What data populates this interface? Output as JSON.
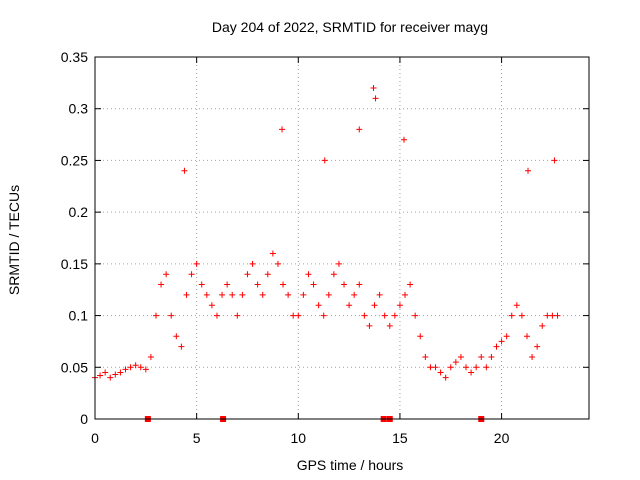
{
  "chart_data": {
    "type": "scatter",
    "title": "Day 204 of 2022, SRMTID for receiver mayg",
    "xlabel": "GPS time / hours",
    "ylabel": "SRMTID / TECUs",
    "xlim": [
      0,
      24.3
    ],
    "ylim": [
      0,
      0.35
    ],
    "xticks": [
      0,
      5,
      10,
      15,
      20
    ],
    "xtick_labels": [
      "0",
      "5",
      "10",
      "15",
      "20"
    ],
    "yticks": [
      0,
      0.05,
      0.1,
      0.15,
      0.2,
      0.25,
      0.3,
      0.35
    ],
    "ytick_labels": [
      "0",
      "0.05",
      "0.1",
      "0.15",
      "0.2",
      "0.25",
      "0.3",
      "0.35"
    ],
    "grid": true,
    "marker": "+",
    "color": "#ff0000",
    "series": [
      {
        "name": "SRMTID",
        "x": [
          0.0,
          0.25,
          0.5,
          0.75,
          1.0,
          1.25,
          1.5,
          1.75,
          2.0,
          2.25,
          2.5,
          2.75,
          3.0,
          3.25,
          3.5,
          3.75,
          4.0,
          4.25,
          4.5,
          4.75,
          5.0,
          5.25,
          5.5,
          5.75,
          6.0,
          6.25,
          6.5,
          6.75,
          7.0,
          7.25,
          7.5,
          7.75,
          8.0,
          8.25,
          8.5,
          8.75,
          9.0,
          9.25,
          9.5,
          9.75,
          10.0,
          10.25,
          10.5,
          10.75,
          11.0,
          11.25,
          11.5,
          11.75,
          12.0,
          12.25,
          12.5,
          12.75,
          13.0,
          13.25,
          13.5,
          13.75,
          14.0,
          14.25,
          14.5,
          14.75,
          15.0,
          15.25,
          15.5,
          15.75,
          16.0,
          16.25,
          16.5,
          16.75,
          17.0,
          17.25,
          17.5,
          17.75,
          18.0,
          18.25,
          18.5,
          18.75,
          19.0,
          19.25,
          19.5,
          19.75,
          20.0,
          20.25,
          20.5,
          20.75,
          21.0,
          21.25,
          21.5,
          21.75,
          22.0,
          22.25,
          22.5,
          22.75
        ],
        "y": [
          0.04,
          0.042,
          0.045,
          0.04,
          0.043,
          0.045,
          0.048,
          0.05,
          0.052,
          0.05,
          0.048,
          0.06,
          0.1,
          0.13,
          0.14,
          0.1,
          0.08,
          0.07,
          0.12,
          0.14,
          0.15,
          0.13,
          0.12,
          0.11,
          0.1,
          0.12,
          0.13,
          0.12,
          0.1,
          0.12,
          0.14,
          0.15,
          0.13,
          0.12,
          0.14,
          0.16,
          0.15,
          0.13,
          0.12,
          0.1,
          0.1,
          0.12,
          0.14,
          0.13,
          0.11,
          0.1,
          0.12,
          0.14,
          0.15,
          0.13,
          0.11,
          0.12,
          0.13,
          0.1,
          0.09,
          0.11,
          0.12,
          0.1,
          0.09,
          0.1,
          0.11,
          0.12,
          0.13,
          0.1,
          0.08,
          0.06,
          0.05,
          0.05,
          0.045,
          0.04,
          0.05,
          0.055,
          0.06,
          0.05,
          0.045,
          0.05,
          0.06,
          0.05,
          0.06,
          0.07,
          0.075,
          0.08,
          0.1,
          0.11,
          0.1,
          0.08,
          0.06,
          0.07,
          0.09,
          0.1,
          0.1,
          0.1
        ]
      }
    ],
    "outliers": [
      {
        "x": 4.4,
        "y": 0.24
      },
      {
        "x": 9.2,
        "y": 0.28
      },
      {
        "x": 11.3,
        "y": 0.25
      },
      {
        "x": 13.0,
        "y": 0.28
      },
      {
        "x": 13.7,
        "y": 0.32
      },
      {
        "x": 13.8,
        "y": 0.31
      },
      {
        "x": 15.2,
        "y": 0.27
      },
      {
        "x": 21.3,
        "y": 0.24
      },
      {
        "x": 22.6,
        "y": 0.25
      }
    ],
    "axis_markers_x": [
      2.6,
      6.3,
      14.2,
      14.5,
      19.0
    ]
  }
}
